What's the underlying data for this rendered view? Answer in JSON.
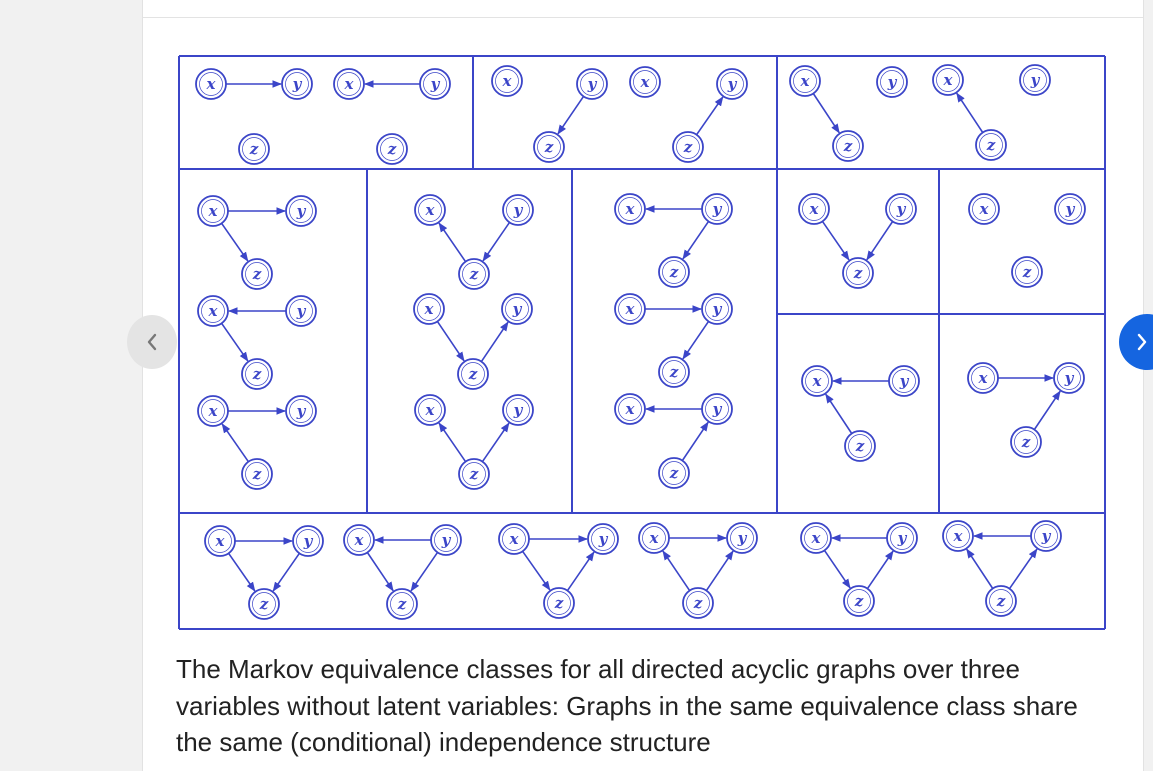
{
  "caption": "The Markov equivalence classes for all directed acyclic graphs over three variables without latent variables: Graphs in the same equivalence class share the same (conditional) independence structure",
  "nodes": {
    "x": "x",
    "y": "y",
    "z": "z"
  },
  "colors": {
    "ink": "#3b45c8",
    "background": "#ffffff",
    "page": "#f1f1f1",
    "next_button": "#1565e0",
    "prev_button": "#e4e4e4"
  },
  "icons": {
    "prev": "chevron-left-icon",
    "next": "chevron-right-icon"
  },
  "graphs": [
    {
      "edges": [
        [
          "x",
          "y"
        ]
      ]
    },
    {
      "edges": [
        [
          "y",
          "x"
        ]
      ]
    },
    {
      "edges": [
        [
          "y",
          "z"
        ]
      ]
    },
    {
      "edges": [
        [
          "z",
          "y"
        ]
      ]
    },
    {
      "edges": [
        [
          "x",
          "z"
        ]
      ]
    },
    {
      "edges": [
        [
          "z",
          "x"
        ]
      ]
    },
    {
      "edges": [
        [
          "x",
          "y"
        ],
        [
          "x",
          "z"
        ]
      ]
    },
    {
      "edges": [
        [
          "y",
          "x"
        ],
        [
          "x",
          "z"
        ]
      ]
    },
    {
      "edges": [
        [
          "x",
          "y"
        ],
        [
          "z",
          "x"
        ]
      ]
    },
    {
      "edges": [
        [
          "z",
          "x"
        ],
        [
          "y",
          "z"
        ]
      ]
    },
    {
      "edges": [
        [
          "x",
          "z"
        ],
        [
          "z",
          "y"
        ]
      ]
    },
    {
      "edges": [
        [
          "z",
          "x"
        ],
        [
          "z",
          "y"
        ]
      ]
    },
    {
      "edges": [
        [
          "y",
          "x"
        ],
        [
          "y",
          "z"
        ]
      ]
    },
    {
      "edges": [
        [
          "x",
          "y"
        ],
        [
          "y",
          "z"
        ]
      ]
    },
    {
      "edges": [
        [
          "y",
          "x"
        ],
        [
          "z",
          "y"
        ]
      ]
    },
    {
      "edges": [
        [
          "x",
          "z"
        ],
        [
          "y",
          "z"
        ]
      ]
    },
    {
      "edges": []
    },
    {
      "edges": [
        [
          "y",
          "x"
        ],
        [
          "z",
          "x"
        ]
      ]
    },
    {
      "edges": [
        [
          "x",
          "y"
        ],
        [
          "z",
          "y"
        ]
      ]
    },
    {
      "edges": [
        [
          "x",
          "y"
        ],
        [
          "x",
          "z"
        ],
        [
          "y",
          "z"
        ]
      ]
    },
    {
      "edges": [
        [
          "y",
          "x"
        ],
        [
          "x",
          "z"
        ],
        [
          "y",
          "z"
        ]
      ]
    },
    {
      "edges": [
        [
          "x",
          "y"
        ],
        [
          "x",
          "z"
        ],
        [
          "z",
          "y"
        ]
      ]
    },
    {
      "edges": [
        [
          "x",
          "y"
        ],
        [
          "z",
          "x"
        ],
        [
          "z",
          "y"
        ]
      ]
    },
    {
      "edges": [
        [
          "y",
          "x"
        ],
        [
          "x",
          "z"
        ],
        [
          "z",
          "y"
        ]
      ]
    },
    {
      "edges": [
        [
          "y",
          "x"
        ],
        [
          "z",
          "x"
        ],
        [
          "z",
          "y"
        ]
      ]
    }
  ]
}
